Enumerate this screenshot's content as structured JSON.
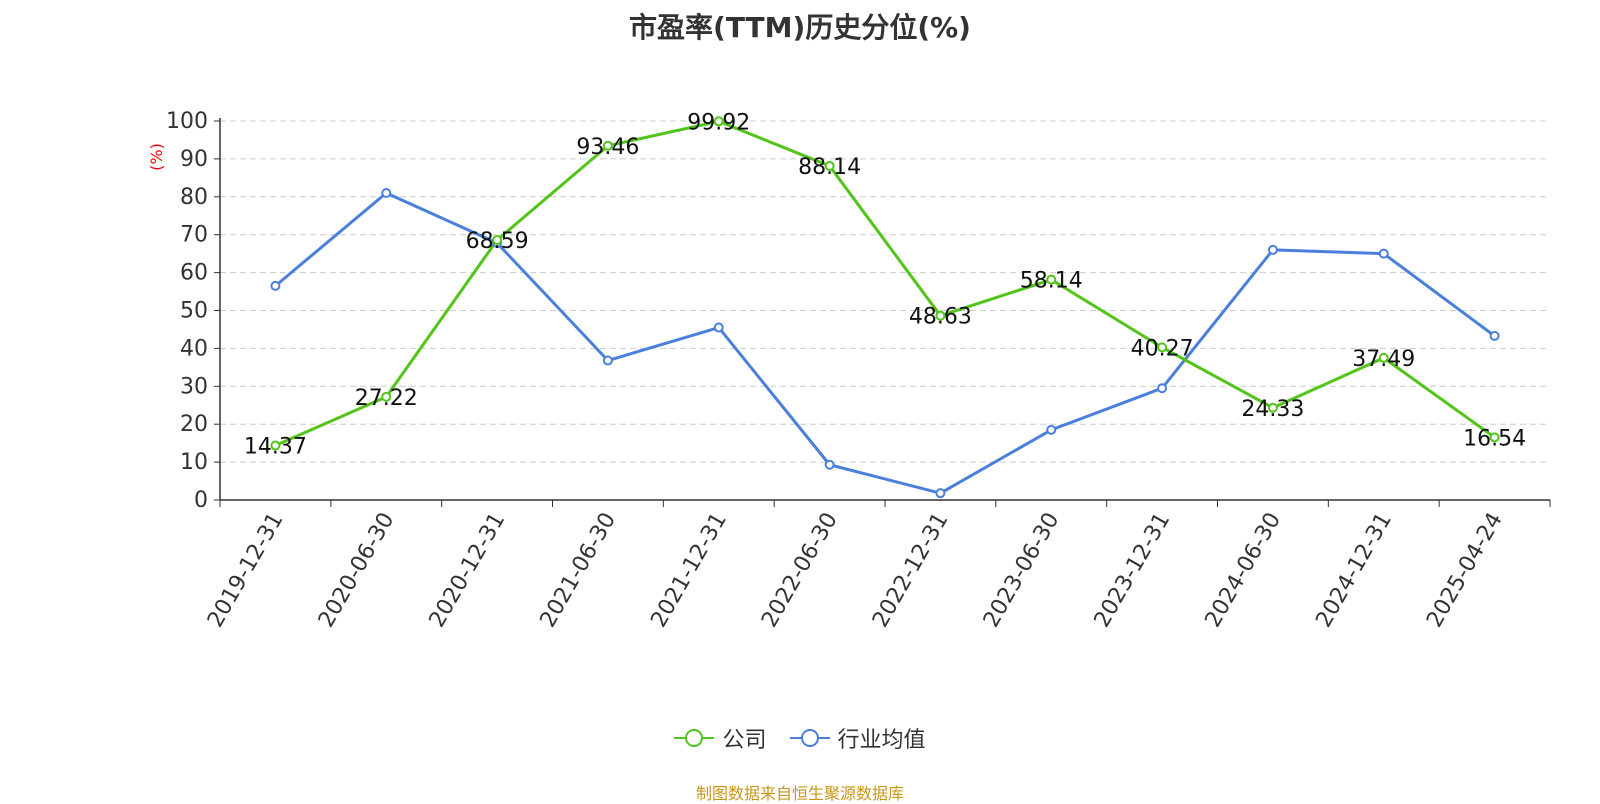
{
  "title": "市盈率(TTM)历史分位(%)",
  "source": "制图数据来自恒生聚源数据库",
  "colors": {
    "company": "#52c41a",
    "industry": "#4a7fdb",
    "ylabel": "#ff0000",
    "source": "#c8961a",
    "axis": "#333333",
    "grid": "#cccccc"
  },
  "chart_data": {
    "type": "line",
    "title": "市盈率(TTM)历史分位(%)",
    "xlabel": "",
    "ylabel": "(%)",
    "ylim": [
      0,
      100
    ],
    "yticks": [
      0,
      10,
      20,
      30,
      40,
      50,
      60,
      70,
      80,
      90,
      100
    ],
    "grid": true,
    "legend_position": "bottom",
    "categories": [
      "2019-12-31",
      "2020-06-30",
      "2020-12-31",
      "2021-06-30",
      "2021-12-31",
      "2022-06-30",
      "2022-12-31",
      "2023-06-30",
      "2023-12-31",
      "2024-06-30",
      "2024-12-31",
      "2025-04-24"
    ],
    "series": [
      {
        "name": "公司",
        "color": "#52c41a",
        "values": [
          14.37,
          27.22,
          68.59,
          93.46,
          99.92,
          88.14,
          48.63,
          58.14,
          40.27,
          24.33,
          37.49,
          16.54
        ],
        "labels": [
          "14.37",
          "27.22",
          "68.59",
          "93.46",
          "99.92",
          "88.14",
          "48.63",
          "58.14",
          "40.27",
          "24.33",
          "37.49",
          "16.54"
        ]
      },
      {
        "name": "行业均值",
        "color": "#4a7fdb",
        "values": [
          56.5,
          81.0,
          67.8,
          36.8,
          45.5,
          9.3,
          1.8,
          18.5,
          29.5,
          66.0,
          65.0,
          43.3
        ]
      }
    ]
  }
}
